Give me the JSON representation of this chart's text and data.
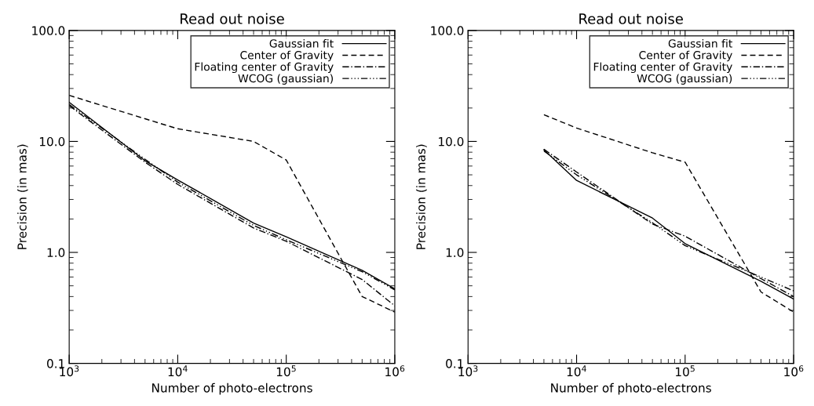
{
  "chart_data": [
    {
      "type": "line",
      "title": "Read out noise",
      "xlabel": "Number of photo-electrons",
      "ylabel": "Precision (in mas)",
      "log": "xy",
      "xlim": [
        1000,
        1000000
      ],
      "ylim": [
        0.1,
        100
      ],
      "xticks": [
        {
          "value": 1000,
          "label": "10$^{3}$"
        },
        {
          "value": 10000,
          "label": "10$^{4}$"
        },
        {
          "value": 100000,
          "label": "10$^{5}$"
        },
        {
          "value": 1000000,
          "label": "10$^{6}$"
        }
      ],
      "yticks": [
        {
          "value": 0.1,
          "label": "0.1"
        },
        {
          "value": 1,
          "label": "1.0"
        },
        {
          "value": 10,
          "label": "10.0"
        },
        {
          "value": 100,
          "label": "100.0"
        }
      ],
      "grid": false,
      "legend": "top right",
      "marker": "none",
      "x": [
        1000,
        5000,
        10000,
        50000,
        100000,
        500000,
        1000000
      ],
      "series": [
        {
          "name": "Gaussian fit",
          "color": "#000000",
          "line_style": "solid",
          "values": [
            22.5,
            6.7,
            4.5,
            1.84,
            1.38,
            0.69,
            0.47
          ]
        },
        {
          "name": "Center of Gravity",
          "color": "#000000",
          "line_style": "dashed",
          "values": [
            26,
            16,
            13,
            10,
            6.8,
            0.4,
            0.29
          ]
        },
        {
          "name": "Floating center of Gravity",
          "color": "#000000",
          "line_style": "dashdot",
          "values": [
            21,
            6.5,
            4.1,
            1.66,
            1.26,
            0.57,
            0.33
          ]
        },
        {
          "name": "WCOG (gaussian)",
          "color": "#000000",
          "line_style": "dashdotdot",
          "values": [
            21.5,
            6.9,
            4.3,
            1.75,
            1.3,
            0.67,
            0.46
          ]
        }
      ]
    },
    {
      "type": "line",
      "title": "Read out noise",
      "xlabel": "Number of photo-electrons",
      "ylabel": "Precision (in mas)",
      "log": "xy",
      "xlim": [
        1000,
        1000000
      ],
      "ylim": [
        0.1,
        100
      ],
      "xticks": [
        {
          "value": 1000,
          "label": "10$^{3}$"
        },
        {
          "value": 10000,
          "label": "10$^{4}$"
        },
        {
          "value": 100000,
          "label": "10$^{5}$"
        },
        {
          "value": 1000000,
          "label": "10$^{6}$"
        }
      ],
      "yticks": [
        {
          "value": 0.1,
          "label": "0.1"
        },
        {
          "value": 1,
          "label": "1.0"
        },
        {
          "value": 10,
          "label": "10.0"
        },
        {
          "value": 100,
          "label": "100.0"
        }
      ],
      "grid": false,
      "legend": "top right",
      "marker": "none",
      "x": [
        5000,
        10000,
        50000,
        100000,
        500000,
        1000000
      ],
      "series": [
        {
          "name": "Gaussian fit",
          "color": "#000000",
          "line_style": "solid",
          "values": [
            8.4,
            4.45,
            2.04,
            1.2,
            0.55,
            0.38
          ]
        },
        {
          "name": "Center of Gravity",
          "color": "#000000",
          "line_style": "dashed",
          "values": [
            17.4,
            13.2,
            7.9,
            6.5,
            0.44,
            0.29
          ]
        },
        {
          "name": "Floating center of Gravity",
          "color": "#000000",
          "line_style": "dashdot",
          "values": [
            8.5,
            5.3,
            1.8,
            1.4,
            0.58,
            0.4
          ]
        },
        {
          "name": "WCOG (gaussian)",
          "color": "#000000",
          "line_style": "dashdotdot",
          "values": [
            8.2,
            5.0,
            1.85,
            1.15,
            0.6,
            0.45
          ]
        }
      ]
    }
  ]
}
